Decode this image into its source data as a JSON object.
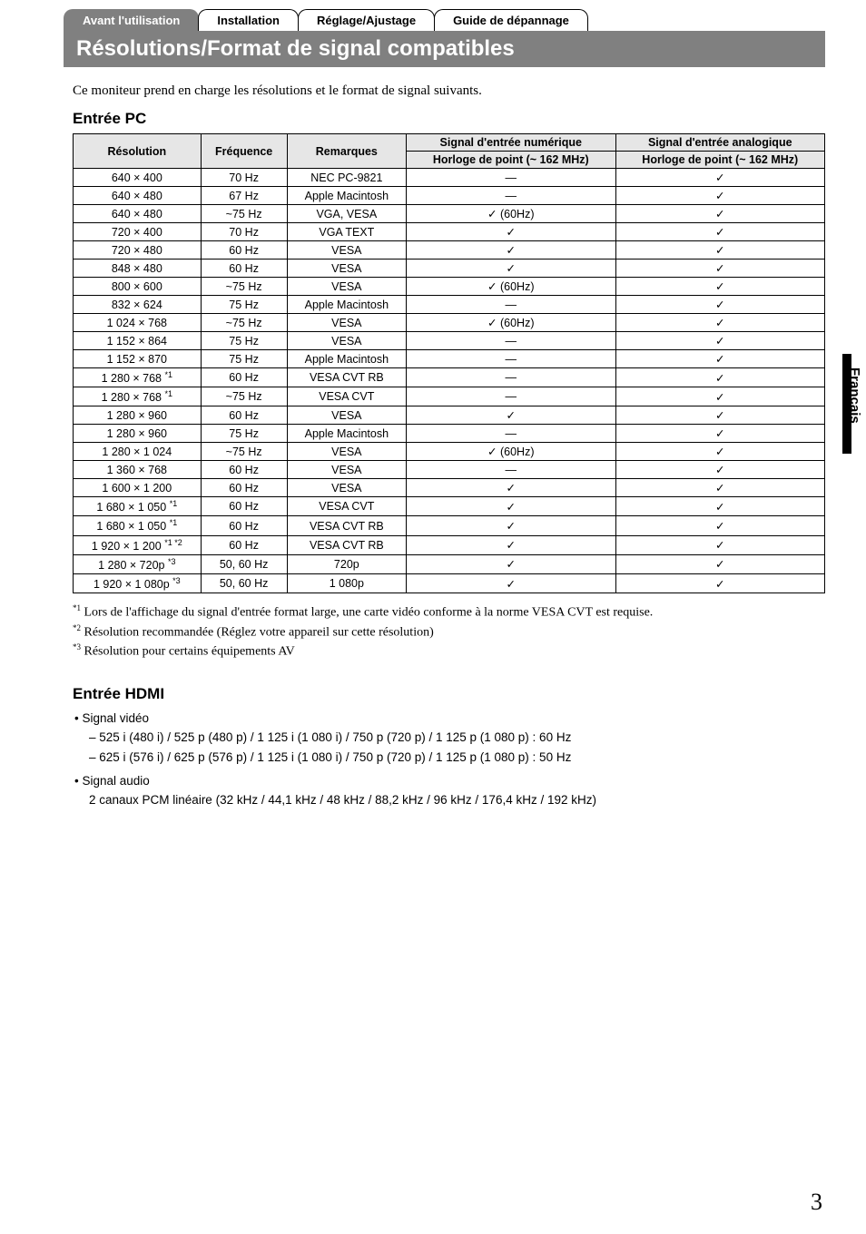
{
  "tabs": {
    "t1": "Avant l'utilisation",
    "t2": "Installation",
    "t3": "Réglage/Ajustage",
    "t4": "Guide de dépannage"
  },
  "title": "Résolutions/Format de signal compatibles",
  "intro": "Ce moniteur prend en charge les résolutions et le format de signal suivants.",
  "section_pc": "Entrée PC",
  "headers": {
    "res": "Résolution",
    "freq": "Fréquence",
    "rem": "Remarques",
    "dig": "Signal d'entrée numérique",
    "ana": "Signal d'entrée analogique",
    "clock": "Horloge de point (~ 162 MHz)"
  },
  "rows": [
    {
      "res": "640 × 400",
      "sup": "",
      "freq": "70 Hz",
      "rem": "NEC PC-9821",
      "dig": "—",
      "ana": "✓"
    },
    {
      "res": "640 × 480",
      "sup": "",
      "freq": "67 Hz",
      "rem": "Apple Macintosh",
      "dig": "—",
      "ana": "✓"
    },
    {
      "res": "640 × 480",
      "sup": "",
      "freq": "~75 Hz",
      "rem": "VGA, VESA",
      "dig": "✓ (60Hz)",
      "ana": "✓"
    },
    {
      "res": "720 × 400",
      "sup": "",
      "freq": "70 Hz",
      "rem": "VGA TEXT",
      "dig": "✓",
      "ana": "✓"
    },
    {
      "res": "720 × 480",
      "sup": "",
      "freq": "60 Hz",
      "rem": "VESA",
      "dig": "✓",
      "ana": "✓"
    },
    {
      "res": "848 × 480",
      "sup": "",
      "freq": "60 Hz",
      "rem": "VESA",
      "dig": "✓",
      "ana": "✓"
    },
    {
      "res": "800 × 600",
      "sup": "",
      "freq": "~75 Hz",
      "rem": "VESA",
      "dig": "✓ (60Hz)",
      "ana": "✓"
    },
    {
      "res": "832 × 624",
      "sup": "",
      "freq": "75 Hz",
      "rem": "Apple Macintosh",
      "dig": "—",
      "ana": "✓"
    },
    {
      "res": "1 024 × 768",
      "sup": "",
      "freq": "~75 Hz",
      "rem": "VESA",
      "dig": "✓ (60Hz)",
      "ana": "✓"
    },
    {
      "res": "1 152 × 864",
      "sup": "",
      "freq": "75 Hz",
      "rem": "VESA",
      "dig": "—",
      "ana": "✓"
    },
    {
      "res": "1 152 × 870",
      "sup": "",
      "freq": "75 Hz",
      "rem": "Apple Macintosh",
      "dig": "—",
      "ana": "✓"
    },
    {
      "res": "1 280 × 768",
      "sup": "*1",
      "freq": "60 Hz",
      "rem": "VESA CVT RB",
      "dig": "—",
      "ana": "✓"
    },
    {
      "res": "1 280 × 768",
      "sup": "*1",
      "freq": "~75 Hz",
      "rem": "VESA CVT",
      "dig": "—",
      "ana": "✓"
    },
    {
      "res": "1 280 × 960",
      "sup": "",
      "freq": "60 Hz",
      "rem": "VESA",
      "dig": "✓",
      "ana": "✓"
    },
    {
      "res": "1 280 × 960",
      "sup": "",
      "freq": "75 Hz",
      "rem": "Apple Macintosh",
      "dig": "—",
      "ana": "✓"
    },
    {
      "res": "1 280 × 1 024",
      "sup": "",
      "freq": "~75 Hz",
      "rem": "VESA",
      "dig": "✓ (60Hz)",
      "ana": "✓"
    },
    {
      "res": "1 360 × 768",
      "sup": "",
      "freq": "60 Hz",
      "rem": "VESA",
      "dig": "—",
      "ana": "✓"
    },
    {
      "res": "1 600 × 1 200",
      "sup": "",
      "freq": "60 Hz",
      "rem": "VESA",
      "dig": "✓",
      "ana": "✓"
    },
    {
      "res": "1 680 × 1 050",
      "sup": "*1",
      "freq": "60 Hz",
      "rem": "VESA CVT",
      "dig": "✓",
      "ana": "✓"
    },
    {
      "res": "1 680 × 1 050",
      "sup": "*1",
      "freq": "60 Hz",
      "rem": "VESA CVT RB",
      "dig": "✓",
      "ana": "✓"
    },
    {
      "res": "1 920 × 1 200",
      "sup": "*1 *2",
      "freq": "60 Hz",
      "rem": "VESA CVT RB",
      "dig": "✓",
      "ana": "✓"
    },
    {
      "res": "1 280 × 720p",
      "sup": "*3",
      "freq": "50, 60 Hz",
      "rem": "720p",
      "dig": "✓",
      "ana": "✓"
    },
    {
      "res": "1 920 × 1 080p",
      "sup": "*3",
      "freq": "50, 60 Hz",
      "rem": "1 080p",
      "dig": "✓",
      "ana": "✓"
    }
  ],
  "footnotes": {
    "f1_sup": "*1",
    "f1": " Lors de l'affichage du signal d'entrée format large, une carte vidéo conforme à la norme VESA CVT est requise.",
    "f2_sup": "*2",
    "f2": " Résolution recommandée (Réglez votre appareil sur cette résolution)",
    "f3_sup": "*3",
    "f3": " Résolution pour certains équipements AV"
  },
  "section_hdmi": "Entrée HDMI",
  "hdmi": {
    "video_label": "• Signal vidéo",
    "video_line1": "– 525 i (480 i) / 525 p (480 p) / 1 125 i (1 080 i) / 750 p (720 p) / 1 125 p (1 080 p) : 60 Hz",
    "video_line2": "– 625 i (576 i) / 625 p (576 p) / 1 125 i (1 080 i) / 750 p (720 p) / 1 125 p (1 080 p) : 50 Hz",
    "audio_label": "• Signal audio",
    "audio_line": "2 canaux PCM linéaire (32 kHz / 44,1 kHz / 48 kHz / 88,2 kHz / 96 kHz / 176,4 kHz / 192 kHz)"
  },
  "side_label": "Français",
  "page_number": "3"
}
